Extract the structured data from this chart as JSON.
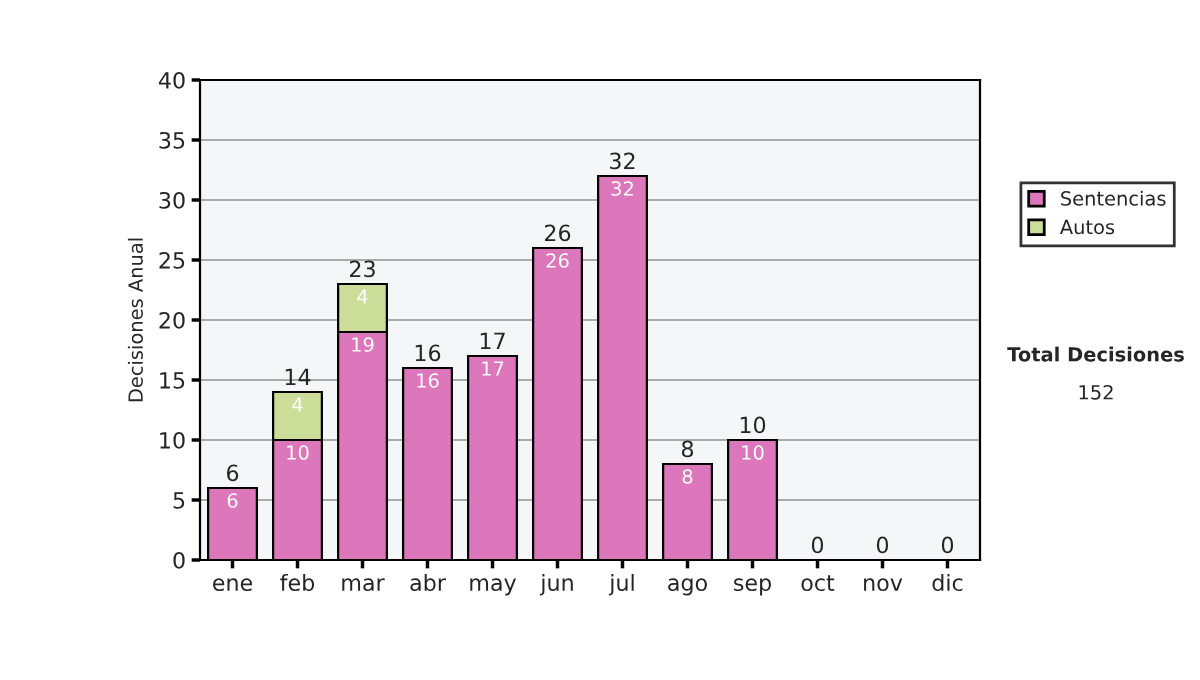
{
  "chart_data": {
    "type": "bar",
    "stacked": true,
    "ylabel": "Decisiones Anual",
    "categories": [
      "ene",
      "feb",
      "mar",
      "abr",
      "may",
      "jun",
      "jul",
      "ago",
      "sep",
      "oct",
      "nov",
      "dic"
    ],
    "series": [
      {
        "name": "Sentencias",
        "color": "#dd77bb",
        "values": [
          6,
          10,
          19,
          16,
          17,
          26,
          32,
          8,
          10,
          0,
          0,
          0
        ],
        "value_labels": [
          "6",
          "10",
          "19",
          "16",
          "17",
          "26",
          "32",
          "8",
          "10",
          null,
          null,
          null
        ]
      },
      {
        "name": "Autos",
        "color": "#ccdd99",
        "values": [
          0,
          4,
          4,
          0,
          0,
          0,
          0,
          0,
          0,
          0,
          0,
          0
        ],
        "value_labels": [
          null,
          "4",
          "4",
          null,
          null,
          null,
          null,
          null,
          null,
          null,
          null,
          null
        ]
      }
    ],
    "totals": [
      "6",
      "14",
      "23",
      "16",
      "17",
      "26",
      "32",
      "8",
      "10",
      "0",
      "0",
      "0"
    ],
    "ylim": [
      0,
      40
    ],
    "yticks": [
      0,
      5,
      10,
      15,
      20,
      25,
      30,
      35,
      40
    ],
    "grid": "y",
    "legend": "right",
    "annotations": [
      "Total Decisiones",
      "152"
    ]
  }
}
